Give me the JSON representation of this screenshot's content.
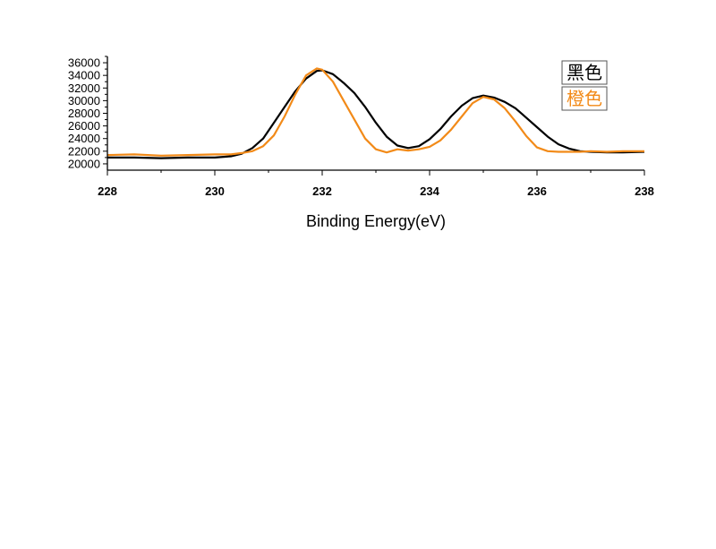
{
  "chart_data": {
    "type": "line",
    "title": "",
    "xlabel": "Binding Energy(eV)",
    "ylabel": "",
    "xlim": [
      228,
      238
    ],
    "ylim": [
      19000,
      37000
    ],
    "x_ticks": [
      "228",
      "230",
      "232",
      "234",
      "236",
      "238"
    ],
    "y_ticks": [
      "20000",
      "22000",
      "24000",
      "26000",
      "28000",
      "30000",
      "32000",
      "34000",
      "36000"
    ],
    "grid": false,
    "legend_position": "top-right",
    "series": [
      {
        "name": "黑色",
        "color": "#000000",
        "x": [
          228.0,
          228.5,
          229.0,
          229.5,
          230.0,
          230.3,
          230.5,
          230.7,
          230.9,
          231.1,
          231.3,
          231.5,
          231.7,
          231.9,
          232.0,
          232.2,
          232.4,
          232.6,
          232.8,
          233.0,
          233.2,
          233.4,
          233.6,
          233.8,
          234.0,
          234.2,
          234.4,
          234.6,
          234.8,
          235.0,
          235.2,
          235.4,
          235.6,
          235.8,
          236.0,
          236.2,
          236.4,
          236.6,
          236.8,
          237.0,
          237.3,
          237.6,
          238.0
        ],
        "values": [
          21000,
          21000,
          20900,
          21000,
          21000,
          21200,
          21600,
          22500,
          24000,
          26500,
          29000,
          31500,
          33500,
          34700,
          34800,
          34200,
          32800,
          31200,
          29000,
          26500,
          24300,
          22900,
          22500,
          22800,
          23900,
          25500,
          27500,
          29200,
          30400,
          30800,
          30500,
          29800,
          28800,
          27300,
          25800,
          24300,
          23100,
          22400,
          22000,
          21900,
          21800,
          21800,
          21900
        ]
      },
      {
        "name": "橙色",
        "color": "#f28a18",
        "x": [
          228.0,
          228.5,
          229.0,
          229.5,
          230.0,
          230.3,
          230.5,
          230.7,
          230.9,
          231.1,
          231.3,
          231.5,
          231.7,
          231.9,
          232.0,
          232.2,
          232.4,
          232.6,
          232.8,
          233.0,
          233.2,
          233.4,
          233.6,
          233.8,
          234.0,
          234.2,
          234.4,
          234.6,
          234.8,
          235.0,
          235.2,
          235.4,
          235.6,
          235.8,
          236.0,
          236.2,
          236.4,
          236.6,
          236.8,
          237.0,
          237.3,
          237.6,
          238.0
        ],
        "values": [
          21400,
          21500,
          21300,
          21400,
          21500,
          21500,
          21700,
          22000,
          22800,
          24500,
          27500,
          31000,
          34000,
          35100,
          34900,
          33000,
          30000,
          27000,
          24000,
          22300,
          21800,
          22300,
          22100,
          22300,
          22700,
          23700,
          25400,
          27500,
          29600,
          30600,
          30200,
          28800,
          26700,
          24400,
          22600,
          22000,
          21900,
          21900,
          21900,
          22000,
          21900,
          22000,
          22000
        ]
      }
    ]
  }
}
